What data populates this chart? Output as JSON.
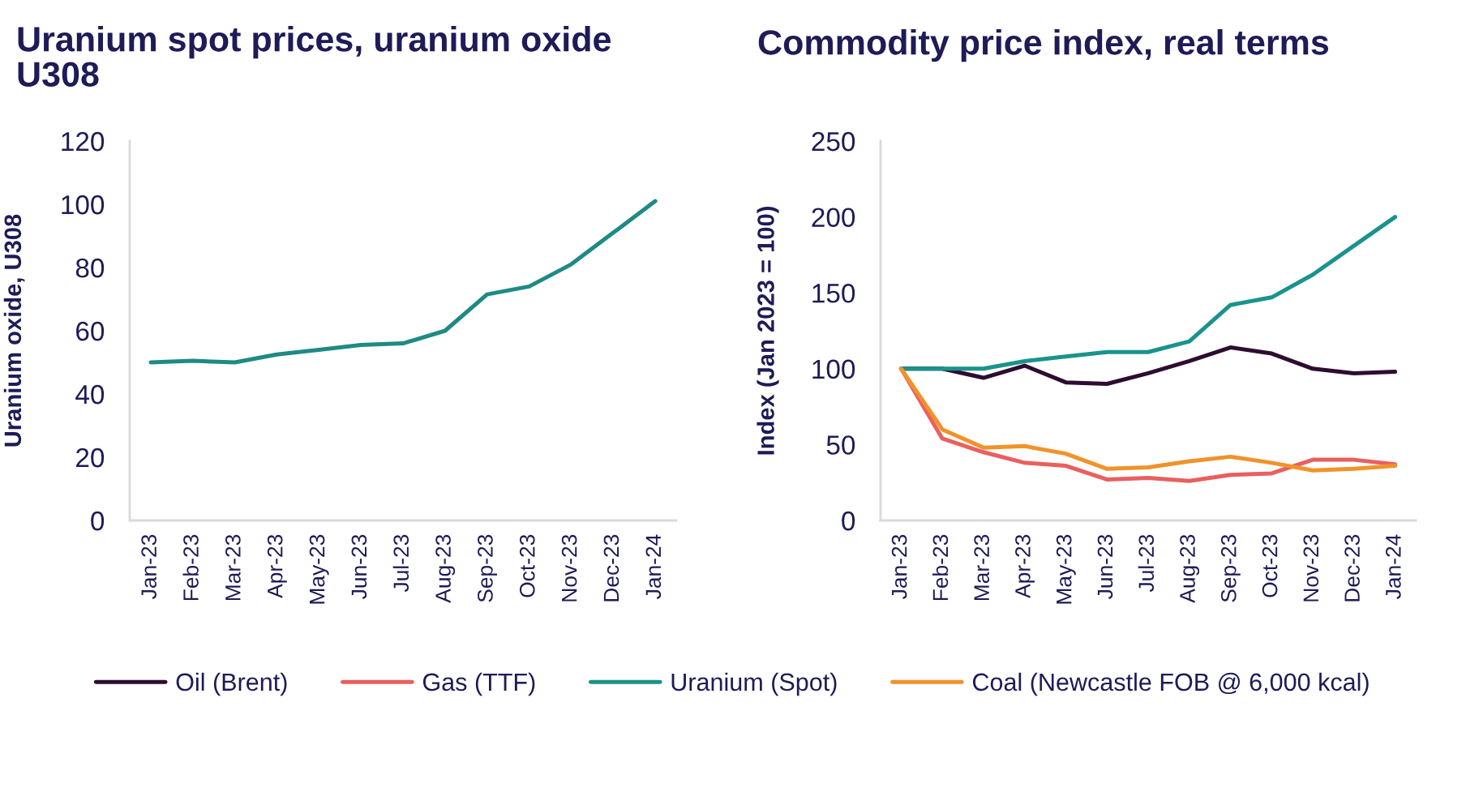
{
  "chart_data": [
    {
      "type": "line",
      "title": "Uranium spot prices, uranium oxide\nU308",
      "ylabel": "Uranium oxide, U308",
      "categories": [
        "Jan-23",
        "Feb-23",
        "Mar-23",
        "Apr-23",
        "May-23",
        "Jun-23",
        "Jul-23",
        "Aug-23",
        "Sep-23",
        "Oct-23",
        "Nov-23",
        "Dec-23",
        "Jan-24"
      ],
      "series": [
        {
          "color": "#1f8a84",
          "values": [
            50,
            50.5,
            50,
            52.5,
            54,
            55.5,
            56,
            60,
            71.5,
            74,
            81,
            91,
            101
          ]
        }
      ],
      "ylim": [
        0,
        120
      ],
      "yticks": [
        0,
        20,
        40,
        60,
        80,
        100,
        120
      ]
    },
    {
      "type": "line",
      "title": "Commodity price index, real terms",
      "ylabel": "Index (Jan 2023 = 100)",
      "categories": [
        "Jan-23",
        "Feb-23",
        "Mar-23",
        "Apr-23",
        "May-23",
        "Jun-23",
        "Jul-23",
        "Aug-23",
        "Sep-23",
        "Oct-23",
        "Nov-23",
        "Dec-23",
        "Jan-24"
      ],
      "series": [
        {
          "name": "Oil (Brent)",
          "color": "#2e0d30",
          "values": [
            100,
            100,
            94,
            102,
            91,
            90,
            97,
            105,
            114,
            110,
            100,
            97,
            98
          ]
        },
        {
          "name": "Gas (TTF)",
          "color": "#e8605f",
          "values": [
            100,
            54,
            45,
            38,
            36,
            27,
            28,
            26,
            30,
            31,
            40,
            40,
            37
          ]
        },
        {
          "name": "Uranium (Spot)",
          "color": "#1a938c",
          "values": [
            100,
            100,
            100,
            105,
            108,
            111,
            111,
            118,
            142,
            147,
            162,
            181,
            200
          ]
        },
        {
          "name": "Coal (Newcastle FOB @ 6,000 kcal)",
          "color": "#f0932a",
          "values": [
            100,
            60,
            48,
            49,
            44,
            34,
            35,
            39,
            42,
            38,
            33,
            34,
            36
          ]
        }
      ],
      "ylim": [
        0,
        250
      ],
      "yticks": [
        0,
        50,
        100,
        150,
        200,
        250
      ],
      "legend": "bottom"
    }
  ]
}
